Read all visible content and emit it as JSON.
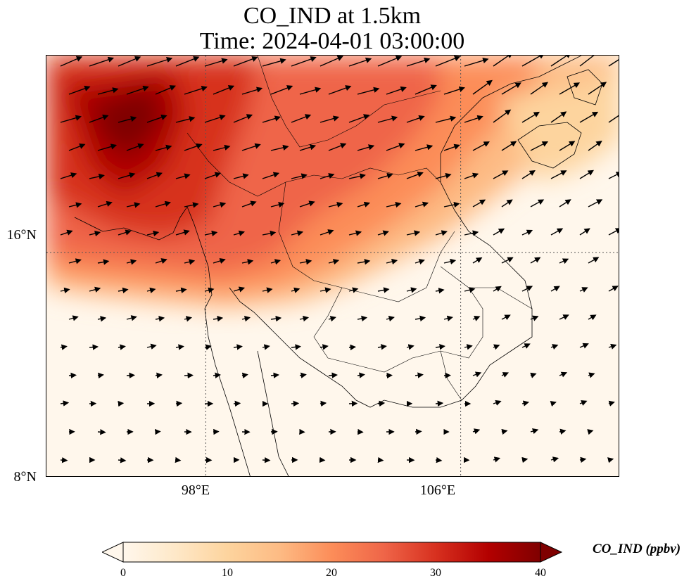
{
  "title_line1": "CO_IND at 1.5km",
  "title_line2": "Time: 2024-04-01 03:00:00",
  "map": {
    "lon_range": [
      93,
      111
    ],
    "lat_range": [
      8,
      23
    ],
    "lat_ticks": [
      {
        "value": 16,
        "label": "16°N"
      },
      {
        "value": 8,
        "label": "8°N"
      }
    ],
    "lon_ticks": [
      {
        "value": 98,
        "label": "98°E"
      },
      {
        "value": 106,
        "label": "106°E"
      }
    ],
    "gridlines": "dotted",
    "field_name": "CO_IND",
    "wind_vectors": true
  },
  "colorbar": {
    "label": "CO_IND (ppbv)",
    "colormap": "OrRd",
    "min": 0,
    "max": 40,
    "ticks": [
      "0",
      "10",
      "20",
      "30",
      "40"
    ],
    "extend": "both",
    "colors": [
      "#fff7ec",
      "#fee8c8",
      "#fdd49e",
      "#fdbb84",
      "#fc8d59",
      "#ef6548",
      "#d7301f",
      "#b30000",
      "#7f0000"
    ]
  }
}
